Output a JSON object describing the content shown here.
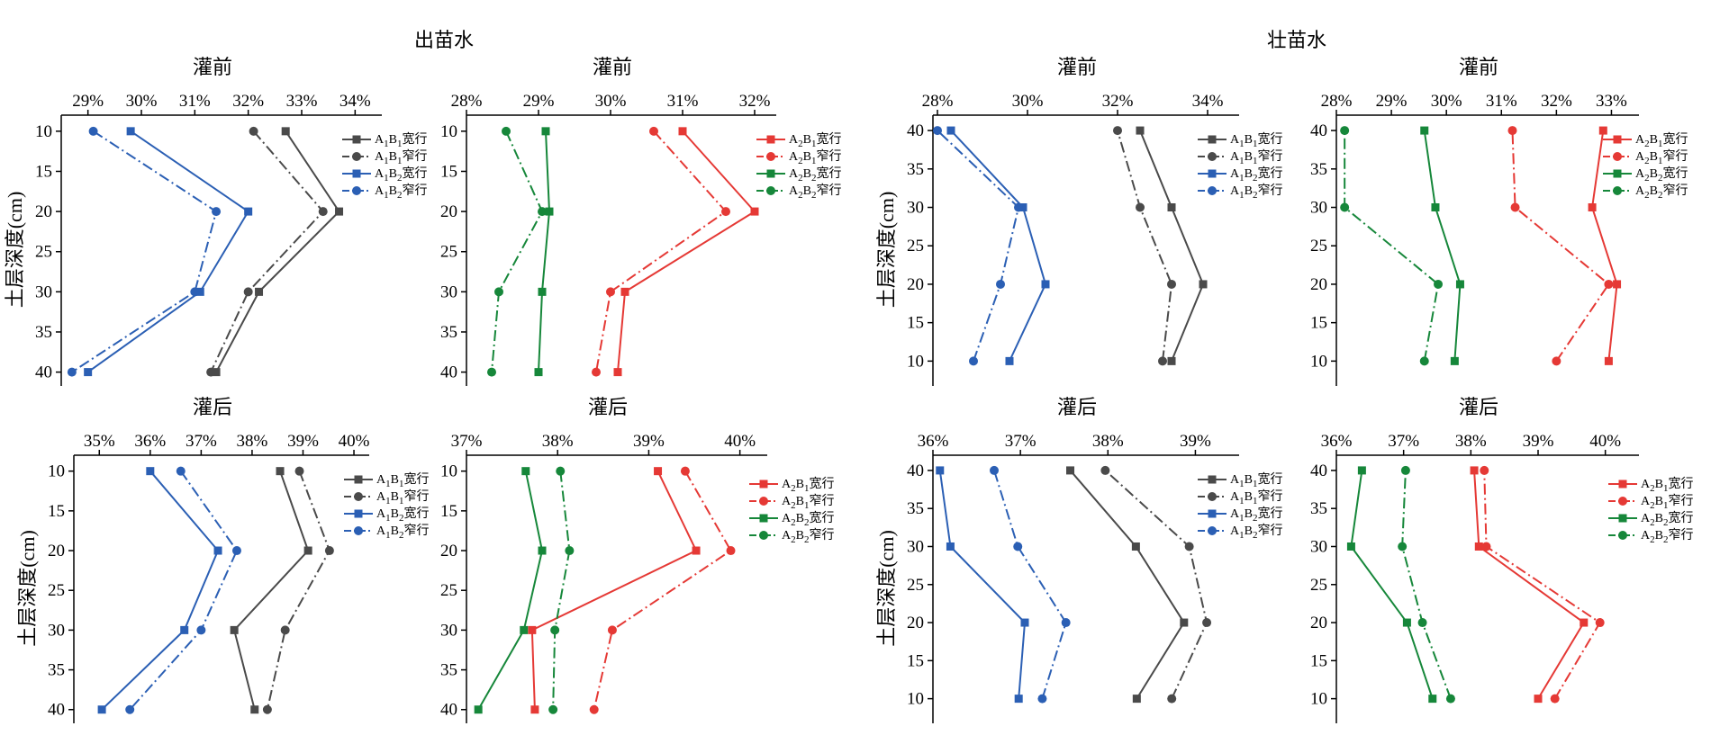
{
  "titles": {
    "section_left": "出苗水",
    "section_right": "壮苗水"
  },
  "colors": {
    "A1B1": "#4a4a4a",
    "A1B2": "#2b5fb4",
    "A2B1": "#e53935",
    "A2B2": "#16873a"
  },
  "chart_data": [
    {
      "type": "line",
      "title": "灌前",
      "ylabel": "土层深度(cm)",
      "xlim": [
        0.285,
        0.345
      ],
      "xticks": [
        0.29,
        0.3,
        0.31,
        0.32,
        0.33,
        0.34
      ],
      "xtick_labels": [
        "29%",
        "30%",
        "31%",
        "32%",
        "33%",
        "34%"
      ],
      "ylim": [
        8,
        41.5
      ],
      "yticks": [
        10,
        15,
        20,
        25,
        30,
        35,
        40
      ],
      "ytick_labels": [
        "10",
        "15",
        "20",
        "25",
        "30",
        "35",
        "40"
      ],
      "y_inverted": true,
      "series": [
        {
          "name": "A1B1宽行",
          "color": "#4a4a4a",
          "dash": "solid",
          "marker": "square",
          "x": [
            0.327,
            0.337,
            0.322,
            0.314
          ],
          "y": [
            10,
            20,
            30,
            40
          ]
        },
        {
          "name": "A1B1窄行",
          "color": "#4a4a4a",
          "dash": "dashdot",
          "marker": "circle",
          "x": [
            0.321,
            0.334,
            0.32,
            0.313
          ],
          "y": [
            10,
            20,
            30,
            40
          ]
        },
        {
          "name": "A1B2宽行",
          "color": "#2b5fb4",
          "dash": "solid",
          "marker": "square",
          "x": [
            0.298,
            0.32,
            0.311,
            0.29
          ],
          "y": [
            10,
            20,
            30,
            40
          ]
        },
        {
          "name": "A1B2窄行",
          "color": "#2b5fb4",
          "dash": "dashdot",
          "marker": "circle",
          "x": [
            0.291,
            0.314,
            0.31,
            0.287
          ],
          "y": [
            10,
            20,
            30,
            40
          ]
        }
      ]
    },
    {
      "type": "line",
      "title": "灌前",
      "ylabel": "",
      "xlim": [
        0.28,
        0.323
      ],
      "xticks": [
        0.28,
        0.29,
        0.3,
        0.31,
        0.32
      ],
      "xtick_labels": [
        "28%",
        "29%",
        "30%",
        "31%",
        "32%"
      ],
      "ylim": [
        8,
        41.5
      ],
      "yticks": [
        10,
        15,
        20,
        25,
        30,
        35,
        40
      ],
      "ytick_labels": [
        "10",
        "15",
        "20",
        "25",
        "30",
        "35",
        "40"
      ],
      "y_inverted": true,
      "series": [
        {
          "name": "A2B1宽行",
          "color": "#e53935",
          "dash": "solid",
          "marker": "square",
          "x": [
            0.31,
            0.32,
            0.302,
            0.301
          ],
          "y": [
            10,
            20,
            30,
            40
          ]
        },
        {
          "name": "A2B1窄行",
          "color": "#e53935",
          "dash": "dashdot",
          "marker": "circle",
          "x": [
            0.306,
            0.316,
            0.3,
            0.298
          ],
          "y": [
            10,
            20,
            30,
            40
          ]
        },
        {
          "name": "A2B2宽行",
          "color": "#16873a",
          "dash": "solid",
          "marker": "square",
          "x": [
            0.291,
            0.2915,
            0.2905,
            0.29
          ],
          "y": [
            10,
            20,
            30,
            40
          ]
        },
        {
          "name": "A2B2窄行",
          "color": "#16873a",
          "dash": "dashdot",
          "marker": "circle",
          "x": [
            0.2855,
            0.2905,
            0.2845,
            0.2835
          ],
          "y": [
            10,
            20,
            30,
            40
          ]
        }
      ]
    },
    {
      "type": "line",
      "title": "灌前",
      "ylabel": "土层深度(cm)",
      "xlim": [
        0.279,
        0.347
      ],
      "xticks": [
        0.28,
        0.3,
        0.32,
        0.34
      ],
      "xtick_labels": [
        "28%",
        "30%",
        "32%",
        "34%"
      ],
      "ylim": [
        7,
        42
      ],
      "yticks": [
        10,
        15,
        20,
        25,
        30,
        35,
        40
      ],
      "ytick_labels": [
        "10",
        "15",
        "20",
        "25",
        "30",
        "35",
        "40"
      ],
      "y_inverted": false,
      "series": [
        {
          "name": "A1B1宽行",
          "color": "#4a4a4a",
          "dash": "solid",
          "marker": "square",
          "x": [
            0.332,
            0.339,
            0.332,
            0.325
          ],
          "y": [
            10,
            20,
            30,
            40
          ]
        },
        {
          "name": "A1B1窄行",
          "color": "#4a4a4a",
          "dash": "dashdot",
          "marker": "circle",
          "x": [
            0.33,
            0.332,
            0.325,
            0.32
          ],
          "y": [
            10,
            20,
            30,
            40
          ]
        },
        {
          "name": "A1B2宽行",
          "color": "#2b5fb4",
          "dash": "solid",
          "marker": "square",
          "x": [
            0.296,
            0.304,
            0.299,
            0.283
          ],
          "y": [
            10,
            20,
            30,
            40
          ]
        },
        {
          "name": "A1B2窄行",
          "color": "#2b5fb4",
          "dash": "dashdot",
          "marker": "circle",
          "x": [
            0.288,
            0.294,
            0.298,
            0.28
          ],
          "y": [
            10,
            20,
            30,
            40
          ]
        }
      ]
    },
    {
      "type": "line",
      "title": "灌前",
      "ylabel": "",
      "xlim": [
        0.28,
        0.335
      ],
      "xticks": [
        0.28,
        0.29,
        0.3,
        0.31,
        0.32,
        0.33
      ],
      "xtick_labels": [
        "28%",
        "29%",
        "30%",
        "31%",
        "32%",
        "33%"
      ],
      "ylim": [
        7,
        42
      ],
      "yticks": [
        10,
        15,
        20,
        25,
        30,
        35,
        40
      ],
      "ytick_labels": [
        "10",
        "15",
        "20",
        "25",
        "30",
        "35",
        "40"
      ],
      "y_inverted": false,
      "series": [
        {
          "name": "A2B1宽行",
          "color": "#e53935",
          "dash": "solid",
          "marker": "square",
          "x": [
            0.3295,
            0.331,
            0.3265,
            0.3285
          ],
          "y": [
            10,
            20,
            30,
            40
          ]
        },
        {
          "name": "A2B1窄行",
          "color": "#e53935",
          "dash": "dashdot",
          "marker": "circle",
          "x": [
            0.32,
            0.3295,
            0.3125,
            0.312
          ],
          "y": [
            10,
            20,
            30,
            40
          ]
        },
        {
          "name": "A2B2宽行",
          "color": "#16873a",
          "dash": "solid",
          "marker": "square",
          "x": [
            0.3015,
            0.3025,
            0.298,
            0.296
          ],
          "y": [
            10,
            20,
            30,
            40
          ]
        },
        {
          "name": "A2B2窄行",
          "color": "#16873a",
          "dash": "dashdot",
          "marker": "circle",
          "x": [
            0.296,
            0.2985,
            0.2815,
            0.2815
          ],
          "y": [
            10,
            20,
            30,
            40
          ]
        }
      ]
    },
    {
      "type": "line",
      "title": "灌后",
      "ylabel": "土层深度(cm)",
      "xlim": [
        0.345,
        0.403
      ],
      "xticks": [
        0.35,
        0.36,
        0.37,
        0.38,
        0.39,
        0.4
      ],
      "xtick_labels": [
        "35%",
        "36%",
        "37%",
        "38%",
        "39%",
        "40%"
      ],
      "ylim": [
        8,
        41.5
      ],
      "yticks": [
        10,
        15,
        20,
        25,
        30,
        35,
        40
      ],
      "ytick_labels": [
        "10",
        "15",
        "20",
        "25",
        "30",
        "35",
        "40"
      ],
      "y_inverted": true,
      "series": [
        {
          "name": "A1B1宽行",
          "color": "#4a4a4a",
          "dash": "solid",
          "marker": "square",
          "x": [
            0.3855,
            0.391,
            0.3765,
            0.3805
          ],
          "y": [
            10,
            20,
            30,
            40
          ]
        },
        {
          "name": "A1B1窄行",
          "color": "#4a4a4a",
          "dash": "dashdot",
          "marker": "circle",
          "x": [
            0.3893,
            0.3952,
            0.3865,
            0.383
          ],
          "y": [
            10,
            20,
            30,
            40
          ]
        },
        {
          "name": "A1B2宽行",
          "color": "#2b5fb4",
          "dash": "solid",
          "marker": "square",
          "x": [
            0.36,
            0.3733,
            0.3667,
            0.3505
          ],
          "y": [
            10,
            20,
            30,
            40
          ]
        },
        {
          "name": "A1B2窄行",
          "color": "#2b5fb4",
          "dash": "dashdot",
          "marker": "circle",
          "x": [
            0.366,
            0.377,
            0.37,
            0.356
          ],
          "y": [
            10,
            20,
            30,
            40
          ]
        }
      ]
    },
    {
      "type": "line",
      "title": "灌后",
      "ylabel": "",
      "xlim": [
        0.37,
        0.403
      ],
      "xticks": [
        0.37,
        0.38,
        0.39,
        0.4
      ],
      "xtick_labels": [
        "37%",
        "38%",
        "39%",
        "40%"
      ],
      "ylim": [
        8,
        41.5
      ],
      "yticks": [
        10,
        15,
        20,
        25,
        30,
        35,
        40
      ],
      "ytick_labels": [
        "10",
        "15",
        "20",
        "25",
        "30",
        "35",
        "40"
      ],
      "y_inverted": true,
      "series": [
        {
          "name": "A2B1宽行",
          "color": "#e53935",
          "dash": "solid",
          "marker": "square",
          "x": [
            0.391,
            0.3952,
            0.3772,
            0.3775
          ],
          "y": [
            10,
            20,
            30,
            40
          ]
        },
        {
          "name": "A2B1窄行",
          "color": "#e53935",
          "dash": "dashdot",
          "marker": "circle",
          "x": [
            0.394,
            0.399,
            0.386,
            0.384
          ],
          "y": [
            10,
            20,
            30,
            40
          ]
        },
        {
          "name": "A2B2宽行",
          "color": "#16873a",
          "dash": "solid",
          "marker": "square",
          "x": [
            0.3765,
            0.3783,
            0.3763,
            0.3713
          ],
          "y": [
            10,
            20,
            30,
            40
          ]
        },
        {
          "name": "A2B2窄行",
          "color": "#16873a",
          "dash": "dashdot",
          "marker": "circle",
          "x": [
            0.3803,
            0.3813,
            0.3797,
            0.3795
          ],
          "y": [
            10,
            20,
            30,
            40
          ]
        }
      ]
    },
    {
      "type": "line",
      "title": "灌后",
      "ylabel": "土层深度(cm)",
      "xlim": [
        0.36,
        0.395
      ],
      "xticks": [
        0.36,
        0.37,
        0.38,
        0.39
      ],
      "xtick_labels": [
        "36%",
        "37%",
        "38%",
        "39%"
      ],
      "ylim": [
        7,
        42
      ],
      "yticks": [
        10,
        15,
        20,
        25,
        30,
        35,
        40
      ],
      "ytick_labels": [
        "10",
        "15",
        "20",
        "25",
        "30",
        "35",
        "40"
      ],
      "y_inverted": false,
      "series": [
        {
          "name": "A1B1宽行",
          "color": "#4a4a4a",
          "dash": "solid",
          "marker": "square",
          "x": [
            0.3833,
            0.3887,
            0.3832,
            0.3757
          ],
          "y": [
            10,
            20,
            30,
            40
          ]
        },
        {
          "name": "A1B1窄行",
          "color": "#4a4a4a",
          "dash": "dashdot",
          "marker": "circle",
          "x": [
            0.3873,
            0.3913,
            0.3893,
            0.3797
          ],
          "y": [
            10,
            20,
            30,
            40
          ]
        },
        {
          "name": "A1B2宽行",
          "color": "#2b5fb4",
          "dash": "solid",
          "marker": "square",
          "x": [
            0.3698,
            0.3705,
            0.362,
            0.3608
          ],
          "y": [
            10,
            20,
            30,
            40
          ]
        },
        {
          "name": "A1B2窄行",
          "color": "#2b5fb4",
          "dash": "dashdot",
          "marker": "circle",
          "x": [
            0.3725,
            0.3752,
            0.3697,
            0.367
          ],
          "y": [
            10,
            20,
            30,
            40
          ]
        }
      ]
    },
    {
      "type": "line",
      "title": "灌后",
      "ylabel": "",
      "xlim": [
        0.36,
        0.405
      ],
      "xticks": [
        0.36,
        0.37,
        0.38,
        0.39,
        0.4
      ],
      "xtick_labels": [
        "36%",
        "37%",
        "38%",
        "39%",
        "40%"
      ],
      "ylim": [
        7,
        42
      ],
      "yticks": [
        10,
        15,
        20,
        25,
        30,
        35,
        40
      ],
      "ytick_labels": [
        "10",
        "15",
        "20",
        "25",
        "30",
        "35",
        "40"
      ],
      "y_inverted": false,
      "series": [
        {
          "name": "A2B1宽行",
          "color": "#e53935",
          "dash": "solid",
          "marker": "square",
          "x": [
            0.39,
            0.3968,
            0.3812,
            0.3805
          ],
          "y": [
            10,
            20,
            30,
            40
          ]
        },
        {
          "name": "A2B1窄行",
          "color": "#e53935",
          "dash": "dashdot",
          "marker": "circle",
          "x": [
            0.3925,
            0.3992,
            0.3823,
            0.382
          ],
          "y": [
            10,
            20,
            30,
            40
          ]
        },
        {
          "name": "A2B2宽行",
          "color": "#16873a",
          "dash": "solid",
          "marker": "square",
          "x": [
            0.3743,
            0.3705,
            0.3622,
            0.3638
          ],
          "y": [
            10,
            20,
            30,
            40
          ]
        },
        {
          "name": "A2B2窄行",
          "color": "#16873a",
          "dash": "dashdot",
          "marker": "circle",
          "x": [
            0.377,
            0.3728,
            0.3698,
            0.3703
          ],
          "y": [
            10,
            20,
            30,
            40
          ]
        }
      ]
    }
  ]
}
